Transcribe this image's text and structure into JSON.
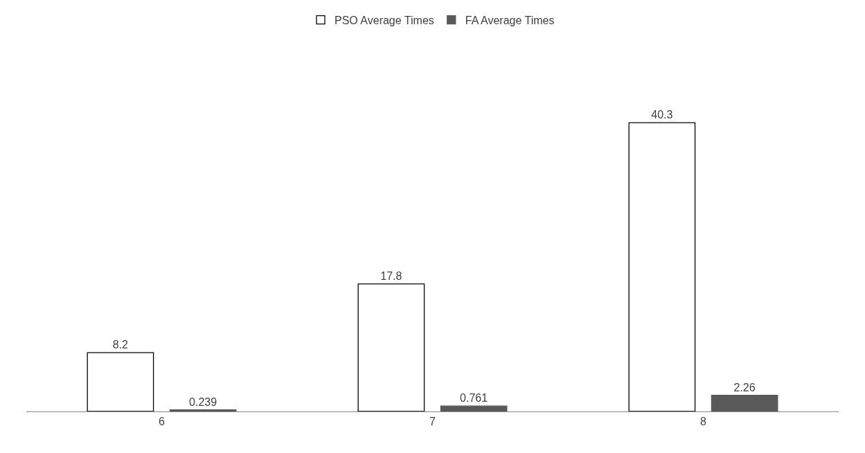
{
  "chart_data": {
    "type": "bar",
    "categories": [
      "6",
      "7",
      "8"
    ],
    "series": [
      {
        "name": "PSO Average Times",
        "color": "#ffffff",
        "values": [
          8.2,
          17.8,
          40.3
        ]
      },
      {
        "name": "FA Average Times",
        "color": "#595959",
        "values": [
          0.239,
          0.761,
          2.26
        ]
      }
    ],
    "data_labels": true,
    "legend": "top"
  }
}
